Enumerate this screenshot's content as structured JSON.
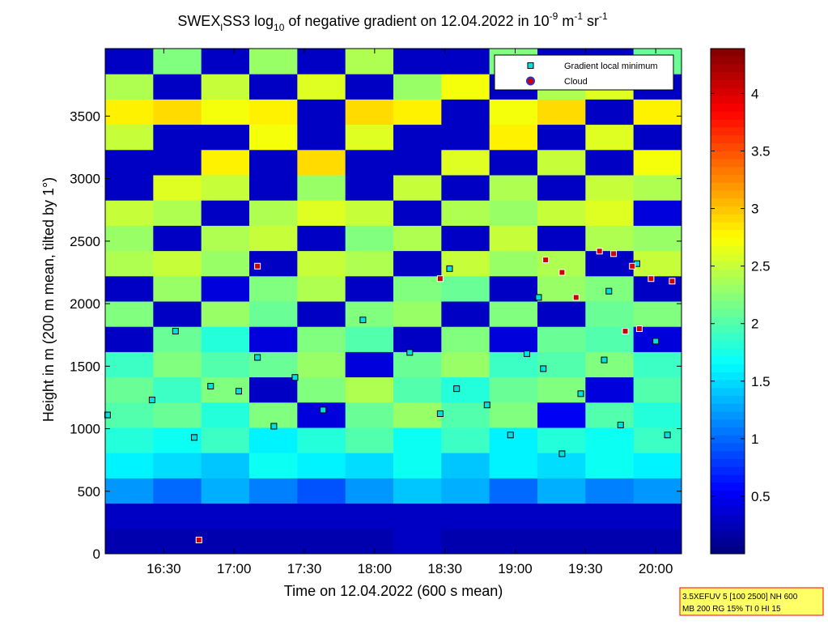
{
  "chart_data": {
    "type": "heatmap-scatter",
    "title": [
      "SWEX",
      "l",
      "SS3 log",
      "10",
      " of negative gradient on 12.04.2022 in 10",
      "-9",
      " m",
      "-1",
      " sr",
      "-1"
    ],
    "x_label": "Time on 12.04.2022 (600 s mean)",
    "y_label": "Height in m (200 m mean, tilted by 1°)",
    "xlim": [
      965,
      1211
    ],
    "xticks": [
      {
        "value": 990,
        "label": "16:30"
      },
      {
        "value": 1020,
        "label": "17:00"
      },
      {
        "value": 1050,
        "label": "17:30"
      },
      {
        "value": 1080,
        "label": "18:00"
      },
      {
        "value": 1110,
        "label": "18:30"
      },
      {
        "value": 1140,
        "label": "19:00"
      },
      {
        "value": 1170,
        "label": "19:30"
      },
      {
        "value": 1200,
        "label": "20:00"
      }
    ],
    "ylim": [
      0,
      4040
    ],
    "yticks": [
      0,
      500,
      1000,
      1500,
      2000,
      2500,
      3000,
      3500
    ],
    "colormap": "jet",
    "clim": [
      0,
      4.39
    ],
    "cticks": [
      0.5,
      1,
      1.5,
      2,
      2.5,
      3,
      3.5,
      4
    ],
    "x_edges": [
      965,
      985.5,
      1006,
      1026.5,
      1047,
      1067.5,
      1088,
      1108.5,
      1129,
      1149.5,
      1170,
      1190.5,
      1211
    ],
    "y_edges": [
      0,
      202,
      404,
      606,
      808,
      1010,
      1212,
      1414,
      1616,
      1818,
      2020,
      2222,
      2424,
      2626,
      2828,
      3030,
      3232,
      3434,
      3636,
      3838,
      4040
    ],
    "z": [
      [
        0.2,
        0.2,
        0.2,
        0.2,
        0.2,
        0.2,
        0.3,
        0.2,
        0.2,
        0.2,
        0.2,
        0.2
      ],
      [
        0.3,
        0.3,
        0.3,
        0.3,
        0.3,
        0.3,
        0.3,
        0.3,
        0.3,
        0.3,
        0.3,
        0.3
      ],
      [
        1.2,
        1.0,
        1.3,
        1.1,
        0.9,
        1.2,
        1.4,
        1.3,
        1.0,
        1.3,
        1.1,
        1.2
      ],
      [
        1.6,
        1.5,
        1.4,
        1.7,
        1.6,
        1.5,
        1.7,
        1.4,
        1.6,
        1.5,
        1.7,
        1.6
      ],
      [
        1.8,
        1.7,
        1.9,
        1.6,
        1.8,
        2.0,
        1.7,
        1.9,
        1.6,
        1.8,
        1.7,
        1.9
      ],
      [
        2.0,
        2.1,
        1.8,
        2.2,
        0.4,
        2.1,
        2.3,
        2.0,
        2.2,
        0.5,
        2.0,
        1.8
      ],
      [
        2.1,
        1.9,
        2.2,
        0.3,
        2.2,
        2.4,
        2.0,
        1.8,
        2.1,
        2.2,
        0.4,
        2.0
      ],
      [
        1.9,
        2.2,
        2.0,
        2.1,
        2.3,
        0.4,
        2.1,
        2.3,
        1.9,
        2.0,
        2.2,
        1.9
      ],
      [
        0.3,
        2.1,
        1.8,
        0.4,
        2.2,
        2.0,
        0.3,
        2.2,
        0.4,
        2.1,
        2.0,
        0.4
      ],
      [
        2.2,
        0.3,
        2.3,
        2.1,
        0.3,
        2.2,
        2.3,
        0.3,
        2.2,
        0.3,
        2.1,
        2.2
      ],
      [
        0.3,
        2.3,
        0.4,
        2.2,
        2.4,
        0.3,
        2.2,
        2.1,
        0.3,
        2.3,
        2.2,
        0.3
      ],
      [
        2.4,
        2.5,
        2.3,
        0.3,
        2.5,
        2.4,
        0.3,
        2.5,
        2.3,
        2.4,
        0.3,
        2.5
      ],
      [
        2.3,
        0.3,
        2.4,
        2.5,
        0.3,
        2.2,
        2.4,
        0.3,
        2.5,
        0.3,
        2.4,
        2.3
      ],
      [
        2.5,
        2.4,
        0.3,
        2.4,
        2.6,
        2.5,
        0.3,
        2.4,
        2.3,
        2.5,
        2.6,
        0.4
      ],
      [
        0.3,
        2.6,
        2.5,
        0.3,
        2.3,
        0.3,
        2.5,
        0.3,
        2.4,
        0.3,
        2.5,
        2.4
      ],
      [
        0.3,
        0.3,
        2.8,
        0.3,
        2.9,
        0.3,
        0.3,
        2.6,
        0.3,
        2.5,
        0.3,
        2.7
      ],
      [
        2.5,
        0.3,
        0.3,
        2.7,
        0.3,
        2.6,
        0.3,
        0.3,
        2.8,
        0.3,
        2.6,
        0.3
      ],
      [
        2.8,
        2.9,
        2.7,
        2.8,
        0.3,
        2.9,
        2.8,
        0.3,
        2.7,
        2.9,
        0.3,
        2.8
      ],
      [
        2.4,
        0.3,
        2.5,
        0.3,
        2.6,
        0.3,
        2.3,
        2.7,
        0.3,
        2.4,
        2.6,
        0.3
      ],
      [
        0.3,
        2.2,
        0.3,
        2.3,
        0.3,
        2.4,
        0.3,
        0.3,
        2.2,
        0.3,
        0.3,
        2.1
      ]
    ],
    "series": [
      {
        "name": "Gradient local minimum",
        "color": "#00e0e0",
        "edge": "#000000",
        "x": [
          966,
          985,
          995,
          1003,
          1010,
          1022,
          1030,
          1037,
          1046,
          1058,
          1075,
          1095,
          1108,
          1115,
          1128,
          1138,
          1145,
          1152,
          1160,
          1168,
          1178,
          1185,
          1192,
          1200,
          1205,
          1180,
          1150,
          1112
        ],
        "y": [
          1110,
          1230,
          1780,
          930,
          1340,
          1300,
          1570,
          1020,
          1410,
          1150,
          1870,
          1610,
          1120,
          1320,
          1190,
          950,
          1600,
          1480,
          800,
          1280,
          1550,
          1030,
          2320,
          1700,
          950,
          2100,
          2050,
          2280
        ]
      },
      {
        "name": "Cloud",
        "color": "#cc0000",
        "edge": "#ffffff",
        "x": [
          1030,
          1108,
          1153,
          1160,
          1166,
          1176,
          1182,
          1190,
          1198,
          1207,
          1193,
          1187,
          1005
        ],
        "y": [
          2300,
          2200,
          2350,
          2250,
          2050,
          2420,
          2400,
          2300,
          2200,
          2180,
          1800,
          1780,
          110
        ]
      }
    ],
    "info": [
      "3.5XEFUV 5 [100 2500] NH 600",
      "MB 200 RG 15% TI 0 HI 15"
    ]
  }
}
